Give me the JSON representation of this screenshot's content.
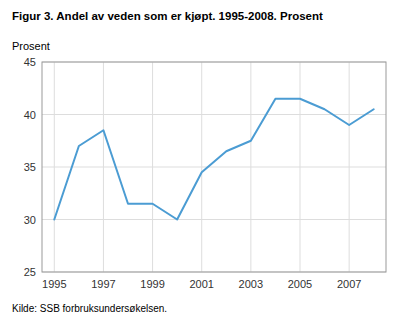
{
  "chart_data": {
    "type": "line",
    "title": "Figur 3. Andel av veden som er kjøpt. 1995-2008. Prosent",
    "y_label": "Prosent",
    "source": "Kilde: SSB forbruksundersøkelsen.",
    "x": [
      1995,
      1996,
      1997,
      1998,
      1999,
      2000,
      2001,
      2002,
      2003,
      2004,
      2005,
      2006,
      2007,
      2008
    ],
    "values": [
      30.0,
      37.0,
      38.5,
      31.5,
      31.5,
      30.0,
      34.5,
      36.5,
      37.5,
      41.5,
      41.5,
      40.5,
      39.0,
      40.5
    ],
    "color": "#4b9cd3",
    "xlim": [
      1994.5,
      2008.5
    ],
    "xticks": [
      1995,
      1997,
      1999,
      2001,
      2003,
      2005,
      2007
    ],
    "ylim": [
      25,
      45
    ],
    "yticks": [
      25,
      30,
      35,
      40,
      45
    ],
    "grid": true
  }
}
